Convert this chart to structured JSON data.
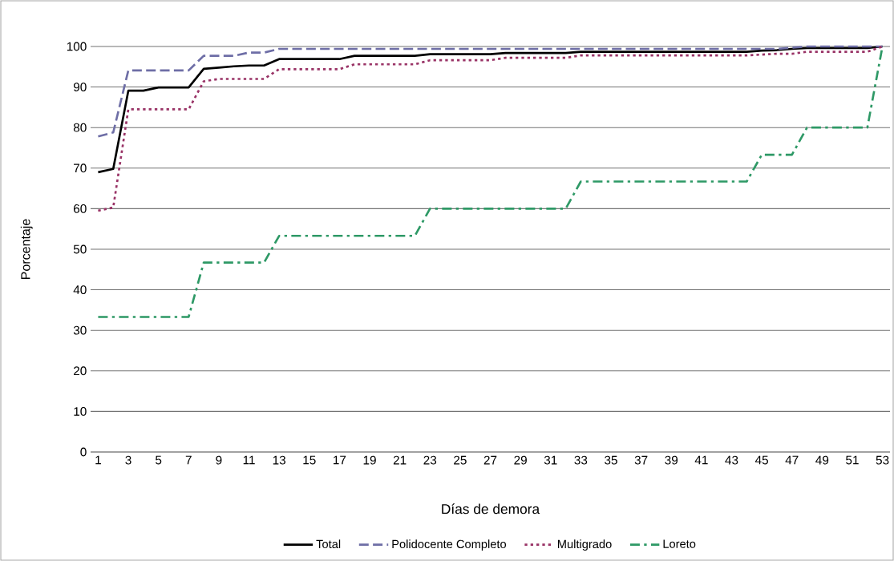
{
  "chart_data": {
    "type": "line",
    "xlabel": "Días de demora",
    "ylabel": "Porcentaje",
    "categories": [
      "1",
      null,
      "3",
      null,
      "5",
      null,
      "7",
      null,
      "9",
      null,
      "11",
      null,
      "13",
      null,
      "15",
      null,
      "17",
      null,
      "19",
      null,
      "21",
      null,
      "23",
      null,
      "25",
      null,
      "27",
      null,
      "29",
      null,
      "31",
      null,
      "33",
      null,
      "35",
      null,
      "37",
      null,
      "39",
      null,
      "41",
      null,
      "43",
      null,
      "45",
      null,
      "47",
      null,
      "49",
      null,
      "51",
      null,
      "53"
    ],
    "series": [
      {
        "name": "Total",
        "color": "#000000",
        "line_style": "solid",
        "values": [
          69,
          69.8,
          89.1,
          89.1,
          89.9,
          89.9,
          89.9,
          94.5,
          94.8,
          95.1,
          95.3,
          95.3,
          96.9,
          96.9,
          96.9,
          96.9,
          96.9,
          97.7,
          97.7,
          97.7,
          97.7,
          97.7,
          98.1,
          98.1,
          98.1,
          98.1,
          98.1,
          98.4,
          98.4,
          98.4,
          98.4,
          98.4,
          98.7,
          98.7,
          98.7,
          98.7,
          98.7,
          98.7,
          98.7,
          98.7,
          98.7,
          98.7,
          98.7,
          98.7,
          99,
          99.1,
          99.4,
          99.6,
          99.6,
          99.6,
          99.6,
          99.6,
          100
        ]
      },
      {
        "name": "Polidocente Completo",
        "color": "#6e6ea6",
        "line_style": "dashed",
        "values": [
          77.8,
          78.8,
          94.1,
          94.1,
          94.1,
          94.1,
          94.1,
          97.7,
          97.7,
          97.7,
          98.5,
          98.5,
          99.4,
          99.4,
          99.4,
          99.4,
          99.4,
          99.4,
          99.4,
          99.4,
          99.4,
          99.4,
          99.4,
          99.4,
          99.4,
          99.4,
          99.4,
          99.4,
          99.4,
          99.4,
          99.4,
          99.4,
          99.4,
          99.4,
          99.4,
          99.4,
          99.4,
          99.4,
          99.4,
          99.4,
          99.4,
          99.4,
          99.4,
          99.4,
          99.4,
          99.4,
          99.7,
          100,
          100,
          100,
          100,
          100,
          100
        ]
      },
      {
        "name": "Multigrado",
        "color": "#993366",
        "line_style": "dotted",
        "values": [
          59.5,
          60.3,
          84.5,
          84.5,
          84.5,
          84.5,
          84.5,
          91.4,
          92,
          92,
          92,
          92,
          94.4,
          94.4,
          94.4,
          94.4,
          94.4,
          95.6,
          95.6,
          95.6,
          95.6,
          95.6,
          96.6,
          96.6,
          96.6,
          96.6,
          96.6,
          97.2,
          97.2,
          97.2,
          97.2,
          97.2,
          97.8,
          97.8,
          97.8,
          97.8,
          97.8,
          97.8,
          97.8,
          97.8,
          97.8,
          97.8,
          97.8,
          97.8,
          98,
          98.2,
          98.2,
          98.7,
          98.7,
          98.7,
          98.7,
          98.7,
          100
        ]
      },
      {
        "name": "Loreto",
        "color": "#2e9966",
        "line_style": "dashdot",
        "values": [
          33.3,
          33.3,
          33.3,
          33.3,
          33.3,
          33.3,
          33.3,
          46.7,
          46.7,
          46.7,
          46.7,
          46.7,
          53.3,
          53.3,
          53.3,
          53.3,
          53.3,
          53.3,
          53.3,
          53.3,
          53.3,
          53.3,
          60,
          60,
          60,
          60,
          60,
          60,
          60,
          60,
          60,
          60,
          66.7,
          66.7,
          66.7,
          66.7,
          66.7,
          66.7,
          66.7,
          66.7,
          66.7,
          66.7,
          66.7,
          66.7,
          73.3,
          73.3,
          73.3,
          80,
          80,
          80,
          80,
          80,
          100
        ]
      }
    ],
    "ylim": [
      0,
      100
    ],
    "yticks": [
      0,
      10,
      20,
      30,
      40,
      50,
      60,
      70,
      80,
      90,
      100
    ],
    "grid": "y",
    "legend": "bottom"
  }
}
